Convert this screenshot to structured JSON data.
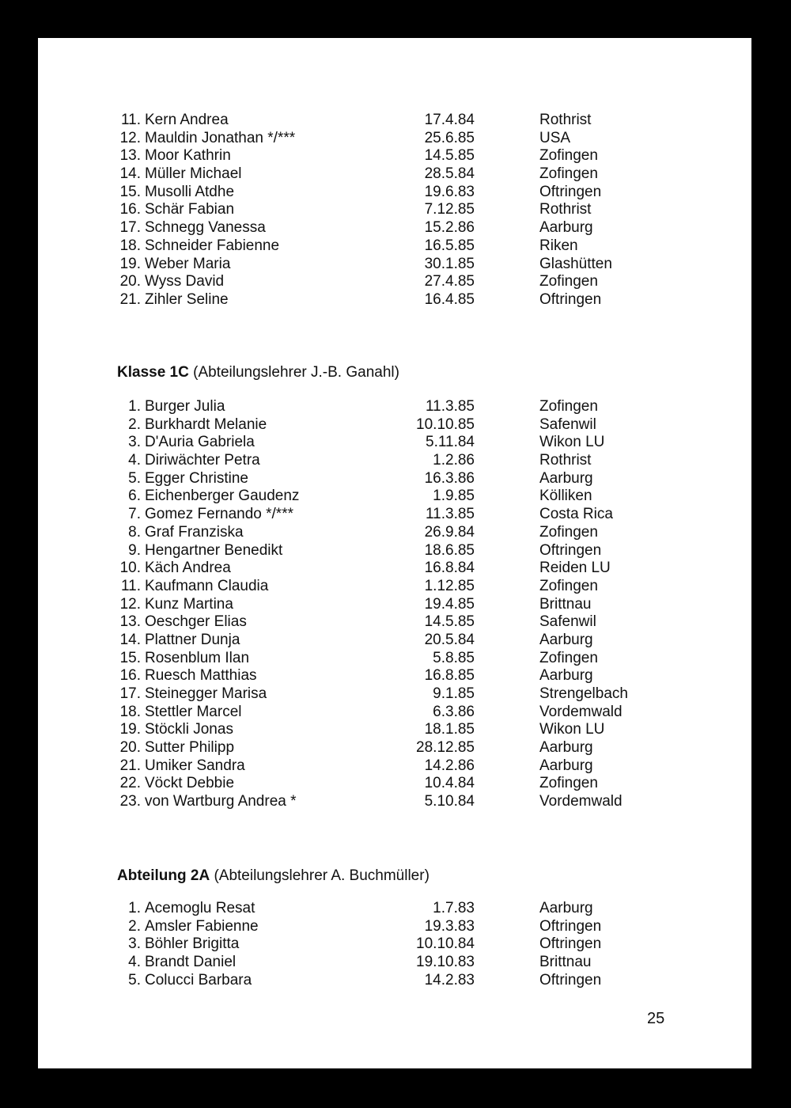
{
  "sections": [
    {
      "heading_bold": "",
      "heading_rest": "",
      "rows": [
        [
          "11.",
          "Kern Andrea",
          "17.4.84",
          "Rothrist"
        ],
        [
          "12.",
          "Mauldin Jonathan */***",
          "25.6.85",
          "USA"
        ],
        [
          "13.",
          "Moor Kathrin",
          "14.5.85",
          "Zofingen"
        ],
        [
          "14.",
          "Müller Michael",
          "28.5.84",
          "Zofingen"
        ],
        [
          "15.",
          "Musolli Atdhe",
          "19.6.83",
          "Oftringen"
        ],
        [
          "16.",
          "Schär Fabian",
          "7.12.85",
          "Rothrist"
        ],
        [
          "17.",
          "Schnegg Vanessa",
          "15.2.86",
          "Aarburg"
        ],
        [
          "18.",
          "Schneider Fabienne",
          "16.5.85",
          "Riken"
        ],
        [
          "19.",
          "Weber Maria",
          "30.1.85",
          "Glashütten"
        ],
        [
          "20.",
          "Wyss David",
          "27.4.85",
          "Zofingen"
        ],
        [
          "21.",
          "Zihler Seline",
          "16.4.85",
          "Oftringen"
        ]
      ]
    },
    {
      "heading_bold": "Klasse 1C",
      "heading_rest": " (Abteilungslehrer J.-B. Ganahl)",
      "rows": [
        [
          "1.",
          "Burger Julia",
          "11.3.85",
          "Zofingen"
        ],
        [
          "2.",
          "Burkhardt Melanie",
          "10.10.85",
          "Safenwil"
        ],
        [
          "3.",
          "D'Auria Gabriela",
          "5.11.84",
          "Wikon LU"
        ],
        [
          "4.",
          "Diriwächter Petra",
          "1.2.86",
          "Rothrist"
        ],
        [
          "5.",
          "Egger Christine",
          "16.3.86",
          "Aarburg"
        ],
        [
          "6.",
          "Eichenberger Gaudenz",
          "1.9.85",
          "Kölliken"
        ],
        [
          "7.",
          "Gomez Fernando */***",
          "11.3.85",
          "Costa Rica"
        ],
        [
          "8.",
          "Graf Franziska",
          "26.9.84",
          "Zofingen"
        ],
        [
          "9.",
          "Hengartner Benedikt",
          "18.6.85",
          "Oftringen"
        ],
        [
          "10.",
          "Käch Andrea",
          "16.8.84",
          "Reiden LU"
        ],
        [
          "11.",
          "Kaufmann Claudia",
          "1.12.85",
          "Zofingen"
        ],
        [
          "12.",
          "Kunz Martina",
          "19.4.85",
          "Brittnau"
        ],
        [
          "13.",
          "Oeschger Elias",
          "14.5.85",
          "Safenwil"
        ],
        [
          "14.",
          "Plattner Dunja",
          "20.5.84",
          "Aarburg"
        ],
        [
          "15.",
          "Rosenblum Ilan",
          "5.8.85",
          "Zofingen"
        ],
        [
          "16.",
          "Ruesch Matthias",
          "16.8.85",
          "Aarburg"
        ],
        [
          "17.",
          "Steinegger Marisa",
          "9.1.85",
          "Strengelbach"
        ],
        [
          "18.",
          "Stettler Marcel",
          "6.3.86",
          "Vordemwald"
        ],
        [
          "19.",
          "Stöckli Jonas",
          "18.1.85",
          "Wikon LU"
        ],
        [
          "20.",
          "Sutter Philipp",
          "28.12.85",
          "Aarburg"
        ],
        [
          "21.",
          "Umiker Sandra",
          "14.2.86",
          "Aarburg"
        ],
        [
          "22.",
          "Vöckt Debbie",
          "10.4.84",
          "Zofingen"
        ],
        [
          "23.",
          "von Wartburg Andrea *",
          "5.10.84",
          "Vordemwald"
        ]
      ]
    },
    {
      "heading_bold": "Abteilung 2A",
      "heading_rest": " (Abteilungslehrer A. Buchmüller)",
      "rows": [
        [
          "1.",
          "Acemoglu Resat",
          "1.7.83",
          "Aarburg"
        ],
        [
          "2.",
          "Amsler Fabienne",
          "19.3.83",
          "Oftringen"
        ],
        [
          "3.",
          "Böhler Brigitta",
          "10.10.84",
          "Oftringen"
        ],
        [
          "4.",
          "Brandt Daniel",
          "19.10.83",
          "Brittnau"
        ],
        [
          "5.",
          "Colucci Barbara",
          "14.2.83",
          "Oftringen"
        ]
      ]
    }
  ],
  "page_number": "25"
}
